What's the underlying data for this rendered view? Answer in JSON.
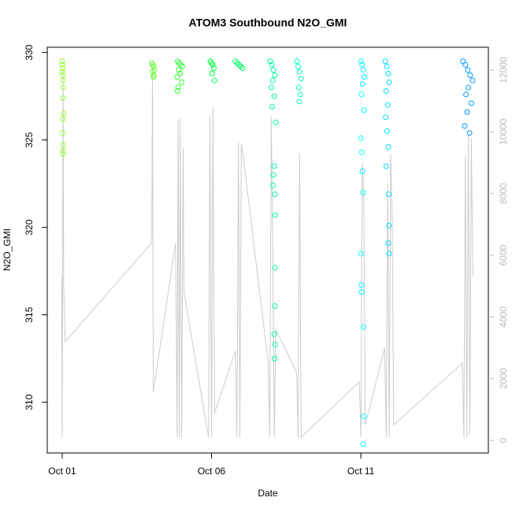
{
  "chart_data": {
    "type": "scatter",
    "title": "ATOM3 Southbound N2O_GMI",
    "xlabel": "Date",
    "ylabel": "N2O_GMI",
    "xlim": [
      0.5,
      15.27
    ],
    "xticks": [
      {
        "value": 1,
        "label": "Oct 01"
      },
      {
        "value": 6,
        "label": "Oct 06"
      },
      {
        "value": 11,
        "label": "Oct 11"
      }
    ],
    "ylim": [
      307.1,
      330.3
    ],
    "yticks": [
      310,
      315,
      320,
      325,
      330
    ],
    "y2lim": [
      -408,
      12740
    ],
    "y2ticks": [
      0,
      2000,
      4000,
      6000,
      8000,
      10000,
      12000
    ],
    "y2color": "#bbbbbb",
    "series": [
      {
        "color": "#99ff33",
        "x": [
          1.0,
          1.01,
          1.02,
          1.0,
          1.03,
          1.02,
          1.04,
          1.03,
          1.05,
          1.02,
          1.01,
          1.03,
          1.04,
          1.02
        ],
        "values": [
          329.5,
          329.3,
          329.1,
          328.9,
          328.7,
          328.4,
          328.0,
          327.4,
          326.5,
          326.2,
          325.4,
          324.7,
          324.4,
          324.2
        ]
      },
      {
        "color": "#66ff33",
        "x": [
          4.0,
          4.03,
          4.06,
          4.09,
          4.02,
          4.07,
          4.05
        ],
        "values": [
          329.4,
          329.3,
          329.2,
          329.0,
          328.9,
          328.7,
          328.6
        ]
      },
      {
        "color": "#33ff33",
        "x": [
          4.87,
          4.92,
          4.97,
          5.02,
          4.9,
          4.95,
          4.85,
          5.0,
          4.88,
          4.86
        ],
        "values": [
          329.5,
          329.4,
          329.3,
          329.2,
          329.0,
          328.8,
          328.6,
          328.3,
          328.0,
          327.8
        ]
      },
      {
        "color": "#00ff44",
        "x": [
          5.96,
          6.0,
          6.04,
          6.08,
          6.02,
          6.1
        ],
        "values": [
          329.5,
          329.4,
          329.3,
          329.1,
          328.8,
          328.4
        ]
      },
      {
        "color": "#00ff66",
        "x": [
          6.8,
          6.86,
          6.92,
          6.98,
          7.04
        ],
        "values": [
          329.5,
          329.4,
          329.3,
          329.2,
          329.1
        ]
      },
      {
        "color": "#00ff99",
        "x": [
          7.97,
          8.02,
          8.07,
          8.12,
          8.05,
          8.0,
          8.1,
          8.03,
          8.15,
          8.1,
          8.08,
          8.06,
          8.12,
          8.13,
          8.12,
          8.12,
          8.1,
          8.13,
          8.11
        ],
        "values": [
          329.5,
          329.3,
          329.0,
          328.7,
          328.4,
          328.0,
          327.5,
          326.9,
          326.0,
          323.5,
          323.0,
          322.4,
          321.9,
          320.7,
          317.7,
          315.5,
          313.9,
          313.3,
          312.5
        ]
      },
      {
        "color": "#00ffcc",
        "x": [
          8.86,
          8.9,
          8.95,
          9.0,
          8.92,
          8.97,
          8.94
        ],
        "values": [
          329.5,
          329.2,
          328.9,
          328.5,
          328.0,
          327.6,
          327.2
        ]
      },
      {
        "color": "#00ffff",
        "x": [
          11.0,
          11.04,
          11.08,
          11.12,
          11.06,
          11.02,
          11.1,
          11.0,
          11.03,
          11.05,
          11.08,
          11.0,
          11.02,
          11.03,
          11.09,
          11.1,
          11.08
        ],
        "values": [
          329.5,
          329.3,
          329.0,
          328.6,
          328.2,
          327.6,
          326.7,
          325.1,
          324.3,
          323.2,
          322.0,
          318.5,
          316.7,
          316.3,
          314.3,
          309.2,
          307.6
        ]
      },
      {
        "color": "#00ddff",
        "x": [
          11.82,
          11.87,
          11.92,
          11.95,
          11.85,
          11.9,
          11.83,
          11.88,
          11.92,
          11.85,
          11.93,
          11.94,
          11.92,
          11.95
        ],
        "values": [
          329.5,
          329.2,
          328.8,
          328.3,
          327.8,
          327.0,
          326.3,
          325.5,
          324.6,
          323.5,
          321.9,
          320.1,
          319.1,
          318.5
        ]
      },
      {
        "color": "#0099ff",
        "x": [
          14.42,
          14.5,
          14.58,
          14.66,
          14.74,
          14.6,
          14.52,
          14.7,
          14.56,
          14.48,
          14.64
        ],
        "values": [
          329.5,
          329.3,
          329.0,
          328.7,
          328.4,
          328.0,
          327.6,
          327.1,
          326.6,
          325.8,
          325.4
        ]
      },
      {
        "axis": "y2",
        "type": "line",
        "color": "#cccccc",
        "x": [
          0.98,
          1.0,
          1.03,
          1.05,
          1.1,
          4.0,
          4.02,
          4.05,
          4.8,
          4.85,
          4.88,
          4.92,
          4.95,
          5.0,
          5.05,
          5.08,
          5.9,
          5.95,
          6.0,
          6.05,
          6.1,
          6.8,
          6.85,
          6.9,
          6.95,
          7.0,
          7.05,
          7.9,
          7.95,
          8.0,
          8.05,
          8.1,
          8.15,
          8.85,
          8.9,
          8.95,
          9.0,
          10.95,
          11.0,
          11.05,
          11.1,
          11.15,
          11.8,
          11.85,
          11.9,
          11.95,
          12.0,
          12.05,
          12.1,
          14.4,
          14.45,
          14.5,
          14.55,
          14.6,
          14.65,
          14.7,
          14.75
        ],
        "values": [
          5300,
          100,
          12000,
          5000,
          3200,
          6400,
          12000,
          1550,
          6400,
          100,
          10400,
          100,
          10450,
          100,
          9500,
          4800,
          100,
          10500,
          100,
          10800,
          880,
          2900,
          100,
          9700,
          100,
          9600,
          9300,
          2500,
          100,
          10500,
          6000,
          100,
          3600,
          2200,
          100,
          9300,
          100,
          1900,
          100,
          9000,
          7800,
          500,
          3000,
          100,
          8300,
          100,
          9300,
          7300,
          500,
          2500,
          100,
          9200,
          100,
          9900,
          200,
          9800,
          5300
        ]
      }
    ]
  }
}
